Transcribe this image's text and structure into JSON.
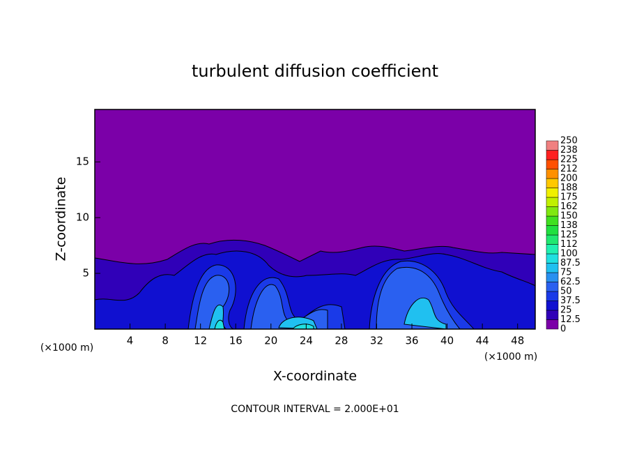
{
  "chart_data": {
    "type": "contour",
    "title": "turbulent diffusion coefficient",
    "x_label": "X-coordinate",
    "y_label": "Z-coordinate",
    "x_unit": "(×1000 m)",
    "y_unit": "(×1000 m)",
    "xlim": [
      0,
      50
    ],
    "ylim": [
      0,
      19.7
    ],
    "xticks": [
      4,
      8,
      12,
      16,
      20,
      24,
      28,
      32,
      36,
      40,
      44,
      48
    ],
    "yticks": [
      5,
      10,
      15
    ],
    "colorbar": {
      "levels": [
        0,
        12.5,
        25,
        37.5,
        50,
        62.5,
        75,
        87.5,
        100,
        112,
        125,
        138,
        150,
        162,
        175,
        188,
        200,
        212,
        225,
        238,
        250
      ],
      "colors": [
        "#7b00a8",
        "#3000b8",
        "#1010d0",
        "#1a3ae8",
        "#2a60f0",
        "#2890f0",
        "#20c0f0",
        "#20e0e0",
        "#20f0b0",
        "#20e870",
        "#20e040",
        "#40e020",
        "#80e810",
        "#c0f000",
        "#f0f000",
        "#ffc800",
        "#ff9000",
        "#ff5000",
        "#ff2020",
        "#f08080"
      ]
    },
    "note": "CONTOUR INTERVAL = 2.000E+01"
  }
}
